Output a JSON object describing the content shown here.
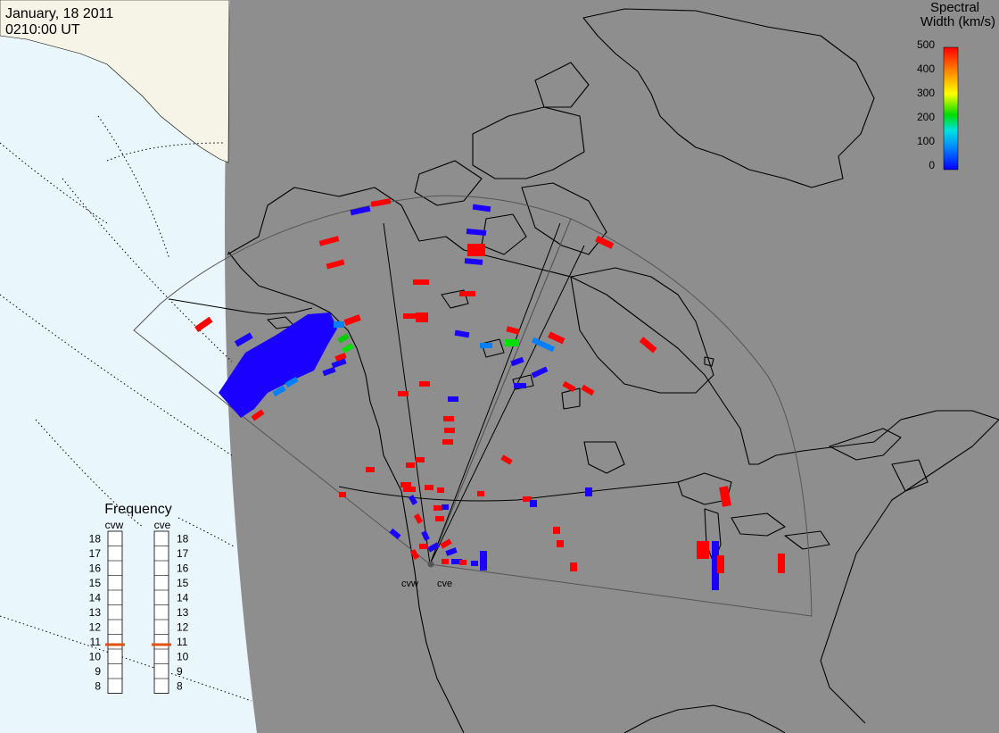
{
  "header": {
    "date": "January, 18 2011",
    "time": "0210:00 UT"
  },
  "colorbar": {
    "title_line1": "Spectral",
    "title_line2": "Width (km/s)",
    "ticks": [
      "500",
      "400",
      "300",
      "200",
      "100",
      "0"
    ],
    "range": [
      0,
      500
    ],
    "colors": [
      "#0000ff",
      "#0088ff",
      "#00e0e0",
      "#00dd00",
      "#ffff00",
      "#ff8800",
      "#ff0000"
    ]
  },
  "frequency_panel": {
    "title": "Frequency",
    "radars": [
      "cvw",
      "cve"
    ],
    "ticks": [
      "18",
      "17",
      "16",
      "15",
      "14",
      "13",
      "12",
      "11",
      "10",
      "9",
      "8"
    ],
    "current_mhz": {
      "cvw": 10.8,
      "cve": 10.8
    },
    "marker_color": "#e05010"
  },
  "site_labels": [
    "cvw",
    "cve"
  ],
  "colors": {
    "ocean": "#e9f6fc",
    "land_dayside": "#f6f4e6",
    "nightside": "#8e8e8e",
    "coastline": "#000000",
    "grid": "#000000",
    "fov": "#555555"
  }
}
